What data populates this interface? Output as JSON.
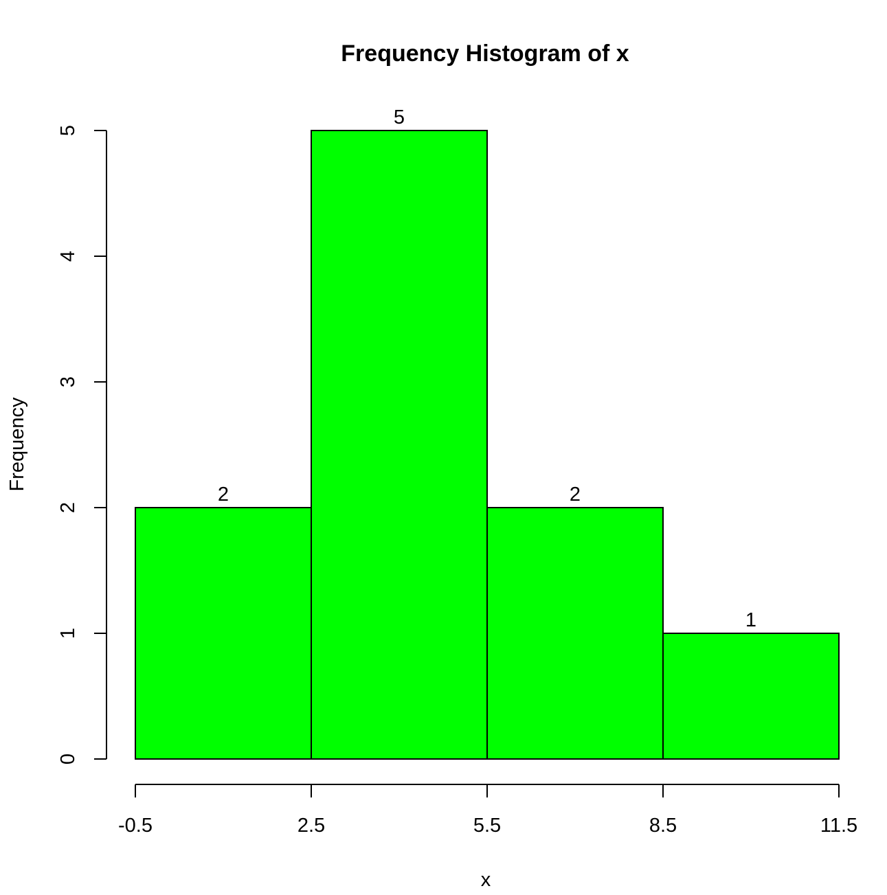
{
  "chart_data": {
    "type": "bar",
    "subtype": "histogram",
    "title": "Frequency Histogram of x",
    "xlabel": "x",
    "ylabel": "Frequency",
    "breaks": [
      -0.5,
      2.5,
      5.5,
      8.5,
      11.5
    ],
    "categories": [
      "-0.5–2.5",
      "2.5–5.5",
      "5.5–8.5",
      "8.5–11.5"
    ],
    "values": [
      2,
      5,
      2,
      1
    ],
    "bar_labels": [
      "2",
      "5",
      "2",
      "1"
    ],
    "x_ticks": [
      "-0.5",
      "2.5",
      "5.5",
      "8.5",
      "11.5"
    ],
    "y_ticks": [
      "0",
      "1",
      "2",
      "3",
      "4",
      "5"
    ],
    "xlim": [
      -0.5,
      11.5
    ],
    "ylim": [
      0,
      5
    ],
    "grid": false,
    "legend": null,
    "colors": {
      "bar_fill": "#00FF00",
      "bar_border": "#000000",
      "axis": "#000000"
    }
  }
}
